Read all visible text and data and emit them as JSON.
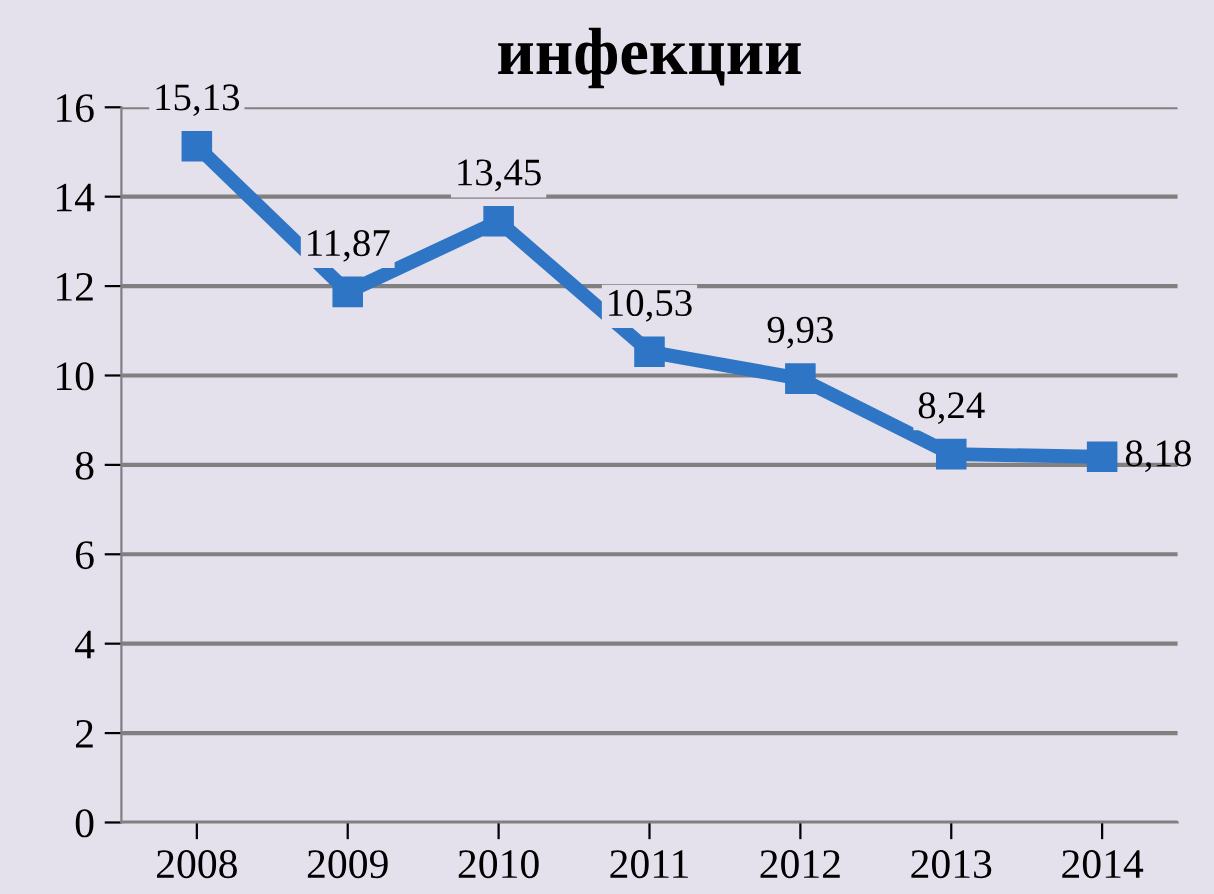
{
  "chart_data": {
    "type": "line",
    "title": "инфекции",
    "categories": [
      "2008",
      "2009",
      "2010",
      "2011",
      "2012",
      "2013",
      "2014"
    ],
    "series": [
      {
        "color": "#2e75c6",
        "values": [
          15.13,
          11.87,
          13.45,
          10.53,
          9.93,
          8.24,
          8.18
        ],
        "value_labels": [
          "15,13",
          "11,87",
          "13,45",
          "10,53",
          "9,93",
          "8,24",
          "8,18"
        ]
      }
    ],
    "ylim": [
      0,
      16
    ],
    "yticks": [
      0,
      2,
      4,
      6,
      8,
      10,
      12,
      14,
      16
    ],
    "grid": "y",
    "marker": "square",
    "line_style": "solid"
  }
}
